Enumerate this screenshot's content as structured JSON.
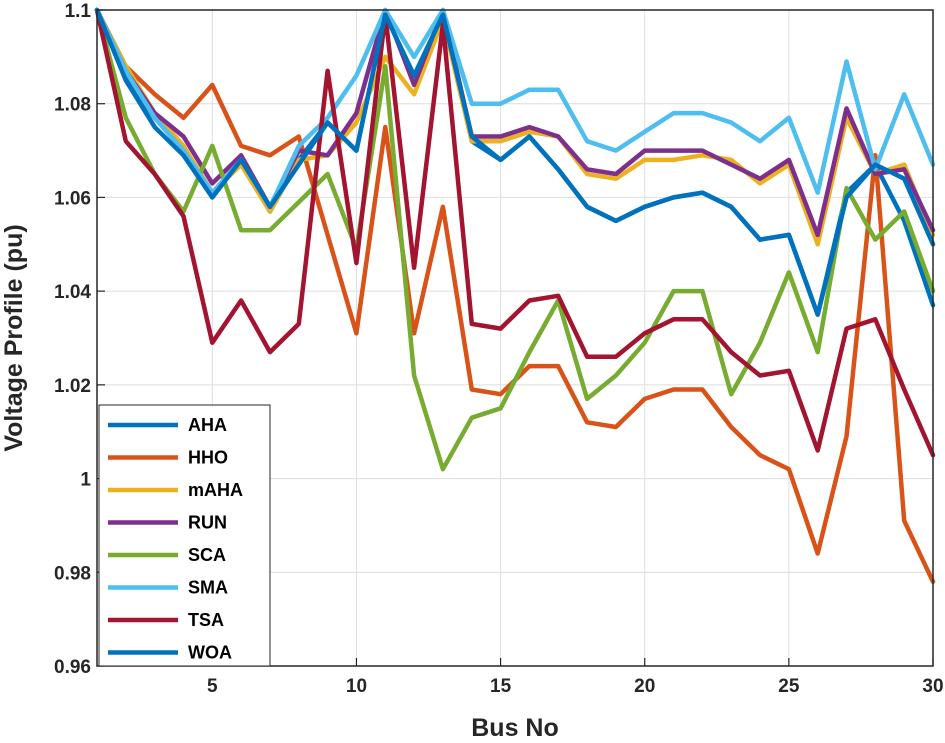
{
  "chart_data": {
    "type": "line",
    "title": "",
    "xlabel": "Bus No",
    "ylabel": "Voltage Profile (pu)",
    "xlim": [
      1,
      30
    ],
    "ylim": [
      0.96,
      1.1
    ],
    "xticks": [
      5,
      10,
      15,
      20,
      25,
      30
    ],
    "yticks": [
      0.96,
      0.98,
      1,
      1.02,
      1.04,
      1.06,
      1.08,
      1.1
    ],
    "ytick_labels": [
      "0.96",
      "0.98",
      "1",
      "1.02",
      "1.04",
      "1.06",
      "1.08",
      "1.1"
    ],
    "grid": true,
    "legend_position": "bottom-left",
    "x": [
      1,
      2,
      3,
      4,
      5,
      6,
      7,
      8,
      9,
      10,
      11,
      12,
      13,
      14,
      15,
      16,
      17,
      18,
      19,
      20,
      21,
      22,
      23,
      24,
      25,
      26,
      27,
      28,
      29,
      30
    ],
    "series": [
      {
        "name": "AHA",
        "color": "#0072BD",
        "values": [
          1.1,
          1.086,
          1.077,
          1.07,
          1.06,
          1.068,
          1.057,
          1.068,
          1.076,
          1.07,
          1.099,
          1.086,
          1.099,
          1.072,
          1.068,
          1.073,
          1.066,
          1.058,
          1.055,
          1.058,
          1.06,
          1.061,
          1.058,
          1.051,
          1.052,
          1.035,
          1.061,
          1.067,
          1.055,
          1.037
        ]
      },
      {
        "name": "HHO",
        "color": "#D95319",
        "values": [
          1.1,
          1.088,
          1.082,
          1.077,
          1.084,
          1.071,
          1.069,
          1.073,
          1.052,
          1.031,
          1.075,
          1.031,
          1.058,
          1.019,
          1.018,
          1.024,
          1.024,
          1.012,
          1.011,
          1.017,
          1.019,
          1.019,
          1.011,
          1.005,
          1.002,
          0.984,
          1.009,
          1.069,
          0.991,
          0.978
        ]
      },
      {
        "name": "mAHA",
        "color": "#EDB120",
        "values": [
          1.1,
          1.088,
          1.078,
          1.071,
          1.061,
          1.067,
          1.057,
          1.068,
          1.069,
          1.076,
          1.09,
          1.082,
          1.098,
          1.072,
          1.072,
          1.074,
          1.073,
          1.065,
          1.064,
          1.068,
          1.068,
          1.069,
          1.068,
          1.063,
          1.067,
          1.05,
          1.077,
          1.065,
          1.067,
          1.052
        ]
      },
      {
        "name": "RUN",
        "color": "#7E2F8E",
        "values": [
          1.1,
          1.087,
          1.078,
          1.073,
          1.063,
          1.069,
          1.058,
          1.07,
          1.069,
          1.078,
          1.1,
          1.084,
          1.1,
          1.073,
          1.073,
          1.075,
          1.073,
          1.066,
          1.065,
          1.07,
          1.07,
          1.07,
          1.067,
          1.064,
          1.068,
          1.052,
          1.079,
          1.065,
          1.066,
          1.053
        ]
      },
      {
        "name": "SCA",
        "color": "#77AC30",
        "values": [
          1.1,
          1.077,
          1.065,
          1.057,
          1.071,
          1.053,
          1.053,
          1.059,
          1.065,
          1.049,
          1.088,
          1.022,
          1.002,
          1.013,
          1.015,
          1.027,
          1.038,
          1.017,
          1.022,
          1.029,
          1.04,
          1.04,
          1.018,
          1.029,
          1.044,
          1.027,
          1.062,
          1.051,
          1.057,
          1.04
        ]
      },
      {
        "name": "SMA",
        "color": "#4DBEEE",
        "values": [
          1.1,
          1.087,
          1.077,
          1.07,
          1.061,
          1.068,
          1.058,
          1.071,
          1.077,
          1.086,
          1.1,
          1.09,
          1.1,
          1.08,
          1.08,
          1.083,
          1.083,
          1.072,
          1.07,
          1.074,
          1.078,
          1.078,
          1.076,
          1.072,
          1.077,
          1.061,
          1.089,
          1.066,
          1.082,
          1.067
        ]
      },
      {
        "name": "TSA",
        "color": "#A2142F",
        "values": [
          1.1,
          1.072,
          1.065,
          1.056,
          1.029,
          1.038,
          1.027,
          1.033,
          1.087,
          1.046,
          1.099,
          1.045,
          1.097,
          1.033,
          1.032,
          1.038,
          1.039,
          1.026,
          1.026,
          1.031,
          1.034,
          1.034,
          1.027,
          1.022,
          1.023,
          1.006,
          1.032,
          1.034,
          1.019,
          1.005
        ]
      },
      {
        "name": "WOA",
        "color": "#0072BD",
        "values": [
          1.1,
          1.085,
          1.075,
          1.069,
          1.06,
          1.068,
          1.058,
          1.067,
          1.076,
          1.07,
          1.099,
          1.086,
          1.099,
          1.073,
          1.068,
          1.073,
          1.066,
          1.058,
          1.055,
          1.058,
          1.06,
          1.061,
          1.058,
          1.051,
          1.052,
          1.035,
          1.06,
          1.067,
          1.064,
          1.05
        ]
      }
    ]
  }
}
